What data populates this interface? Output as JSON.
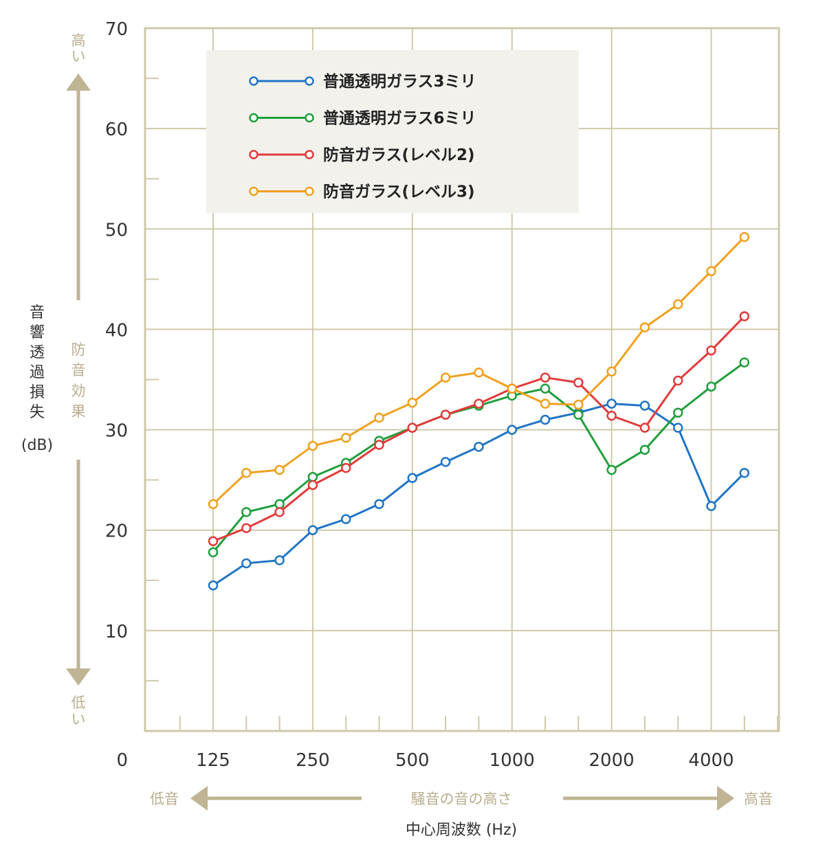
{
  "chart_data": {
    "type": "line",
    "title": "",
    "xlabel": "中心周波数 (Hz)",
    "ylabel": "音響透過損失 (dB)",
    "ylabel_chars": [
      "音",
      "響",
      "透",
      "過",
      "損",
      "失"
    ],
    "ylabel_unit": "(dB)",
    "ylim": [
      0,
      70
    ],
    "y_ticks": [
      0,
      10,
      20,
      30,
      40,
      50,
      60,
      70
    ],
    "y_tick_labels": [
      "0",
      "10",
      "20",
      "30",
      "40",
      "50",
      "60",
      "70"
    ],
    "x_scale": "log (1/3 octave)",
    "x": [
      125,
      160,
      200,
      250,
      315,
      400,
      500,
      630,
      800,
      1000,
      1250,
      1600,
      2000,
      2500,
      3150,
      4000,
      5000
    ],
    "x_tick_values": [
      125,
      250,
      500,
      1000,
      2000,
      4000
    ],
    "x_tick_labels": [
      "125",
      "250",
      "500",
      "1000",
      "2000",
      "4000"
    ],
    "grid": true,
    "legend_position": "top-left",
    "series": [
      {
        "name": "普通透明ガラス3ミリ",
        "color": "#1f74c4",
        "values": [
          14.5,
          16.7,
          17.0,
          20.0,
          21.1,
          22.6,
          25.2,
          26.8,
          28.3,
          30.0,
          31.0,
          31.7,
          32.6,
          32.4,
          30.2,
          22.4,
          25.7
        ]
      },
      {
        "name": "普通透明ガラス6ミリ",
        "color": "#1f9e3c",
        "values": [
          17.8,
          21.8,
          22.6,
          25.3,
          26.7,
          28.9,
          30.2,
          31.5,
          32.4,
          33.4,
          34.1,
          31.5,
          26.0,
          28.0,
          31.7,
          34.3,
          36.7
        ]
      },
      {
        "name": "防音ガラス(レベル2)",
        "color": "#e03a3a",
        "values": [
          18.9,
          20.2,
          21.8,
          24.5,
          26.2,
          28.5,
          30.2,
          31.5,
          32.6,
          34.1,
          35.2,
          34.7,
          31.4,
          30.2,
          34.9,
          37.9,
          41.3
        ]
      },
      {
        "name": "防音ガラス(レベル3)",
        "color": "#f0a01e",
        "values": [
          22.6,
          25.7,
          26.0,
          28.4,
          29.2,
          31.2,
          32.7,
          35.2,
          35.7,
          34.1,
          32.6,
          32.5,
          35.8,
          40.2,
          42.5,
          45.8,
          49.2
        ]
      }
    ],
    "annotations": {
      "y_high": "高い",
      "y_low": "低い",
      "y_effect": "防音効果",
      "x_low": "低音",
      "x_high": "高音",
      "x_pitch": "騒音の音の高さ"
    }
  },
  "colors": {
    "grid": "#cfc9aa",
    "axis_accent": "#bfb493",
    "legend_bg": "#f2f1ec"
  }
}
